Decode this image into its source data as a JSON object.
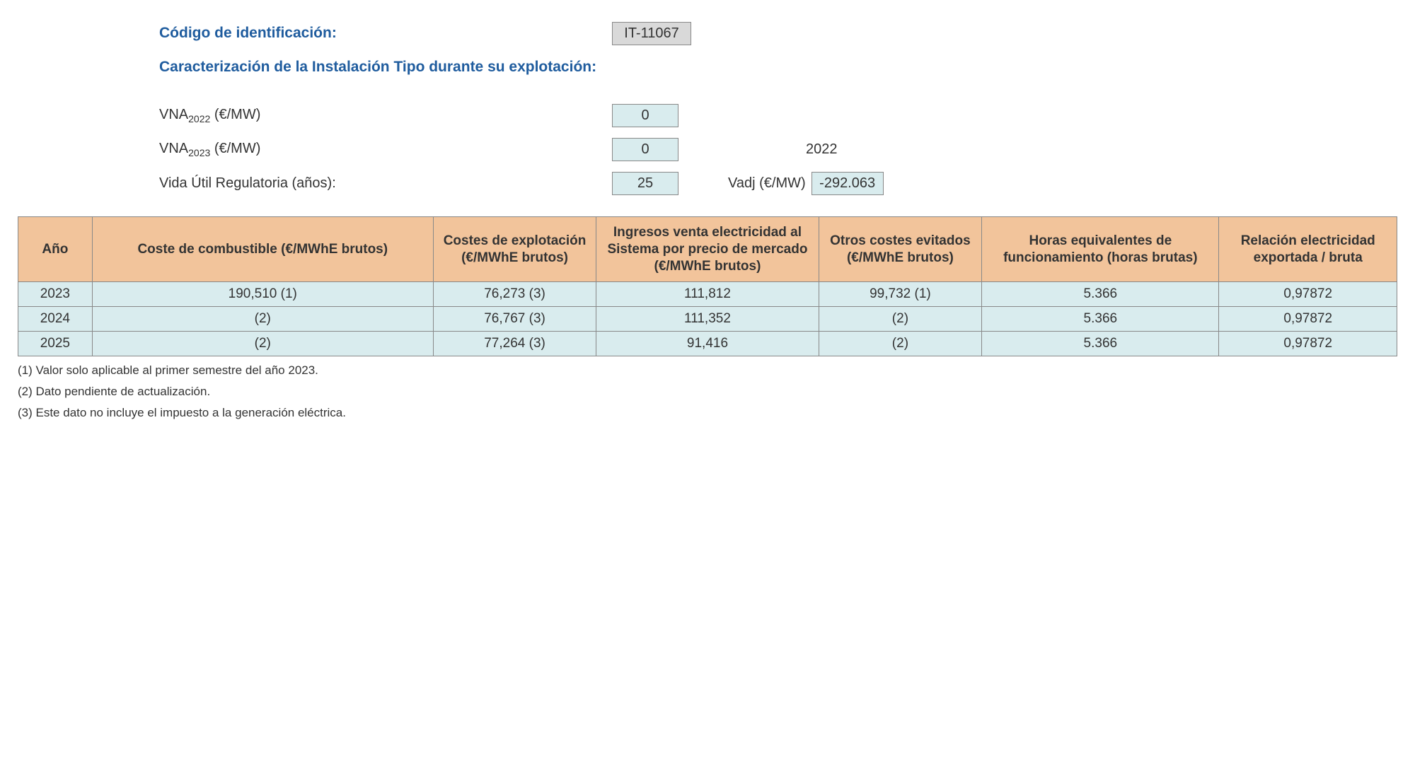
{
  "header": {
    "id_label": "Código de identificación:",
    "id_value": "IT-11067",
    "caract_label": "Caracterización de la Instalación Tipo durante su explotación:",
    "vna2022_label_prefix": "VNA",
    "vna2022_label_sub": "2022",
    "vna2022_label_suffix": " (€/MW)",
    "vna2022_value": "0",
    "vna2023_label_prefix": "VNA",
    "vna2023_label_sub": "2023",
    "vna2023_label_suffix": " (€/MW)",
    "vna2023_value": "0",
    "side_year": "2022",
    "vida_label": "Vida Útil Regulatoria (años):",
    "vida_value": "25",
    "vadj_label": "Vadj (€/MW)",
    "vadj_value": "-292.063"
  },
  "table": {
    "columns": [
      "Año",
      "Coste de combustible (€/MWhE brutos)",
      "Costes de explotación (€/MWhE brutos)",
      "Ingresos venta electricidad al Sistema por precio de mercado (€/MWhE brutos)",
      "Otros costes evitados (€/MWhE brutos)",
      "Horas equivalentes de funcionamiento (horas brutas)",
      "Relación electricidad exportada / bruta"
    ],
    "rows": [
      [
        "2023",
        "190,510 (1)",
        "76,273 (3)",
        "111,812",
        "99,732 (1)",
        "5.366",
        "0,97872"
      ],
      [
        "2024",
        "(2)",
        "76,767 (3)",
        "111,352",
        "(2)",
        "5.366",
        "0,97872"
      ],
      [
        "2025",
        "(2)",
        "77,264 (3)",
        "91,416",
        "(2)",
        "5.366",
        "0,97872"
      ]
    ],
    "header_bg": "#f2c49b",
    "row_bg": "#d9ecee",
    "border_color": "#888888"
  },
  "footnotes": {
    "n1": "(1) Valor solo aplicable al primer semestre del año 2023.",
    "n2": "(2) Dato pendiente de actualización.",
    "n3": "(3) Este dato no incluye el impuesto a la generación eléctrica."
  }
}
